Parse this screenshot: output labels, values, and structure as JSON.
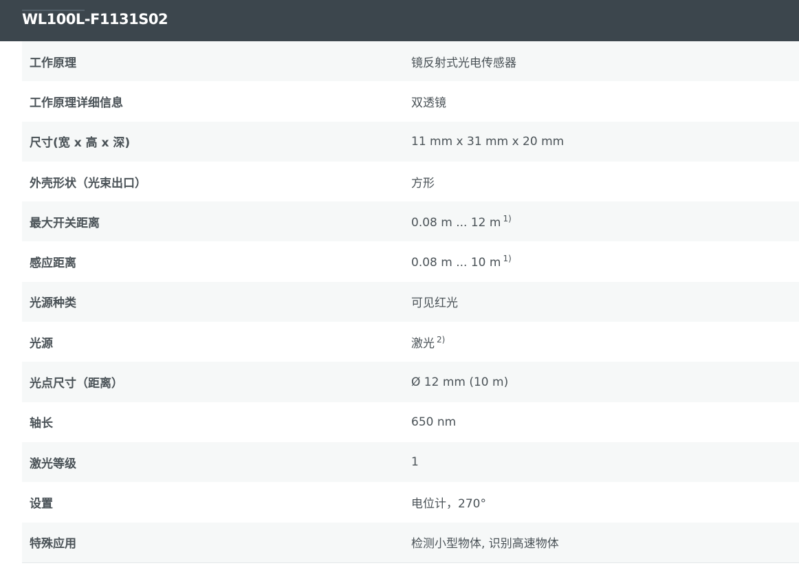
{
  "title": "WL100L-F1131S02",
  "rows": [
    {
      "label": "工作原理",
      "value": "镜反射式光电传感器",
      "note": ""
    },
    {
      "label": "工作原理详细信息",
      "value": "双透镜",
      "note": ""
    },
    {
      "label": "尺寸(宽 x 高 x 深)",
      "value": "11 mm x 31 mm x 20 mm",
      "note": ""
    },
    {
      "label": "外壳形状（光束出口）",
      "value": "方形",
      "note": ""
    },
    {
      "label": "最大开关距离",
      "value": "0.08 m ... 12 m",
      "note": "1)"
    },
    {
      "label": "感应距离",
      "value": "0.08 m ... 10 m",
      "note": "1)"
    },
    {
      "label": "光源种类",
      "value": "可见红光",
      "note": ""
    },
    {
      "label": "光源",
      "value": "激光",
      "note": "2)"
    },
    {
      "label": "光点尺寸（距离）",
      "value": "Ø 12 mm (10 m)",
      "note": ""
    },
    {
      "label": "轴长",
      "value": "650 nm",
      "note": ""
    },
    {
      "label": "激光等级",
      "value": "1",
      "note": ""
    },
    {
      "label": "设置",
      "value": "电位计，270°",
      "note": ""
    },
    {
      "label": "特殊应用",
      "value": "检测小型物体, 识别高速物体",
      "note": ""
    }
  ]
}
